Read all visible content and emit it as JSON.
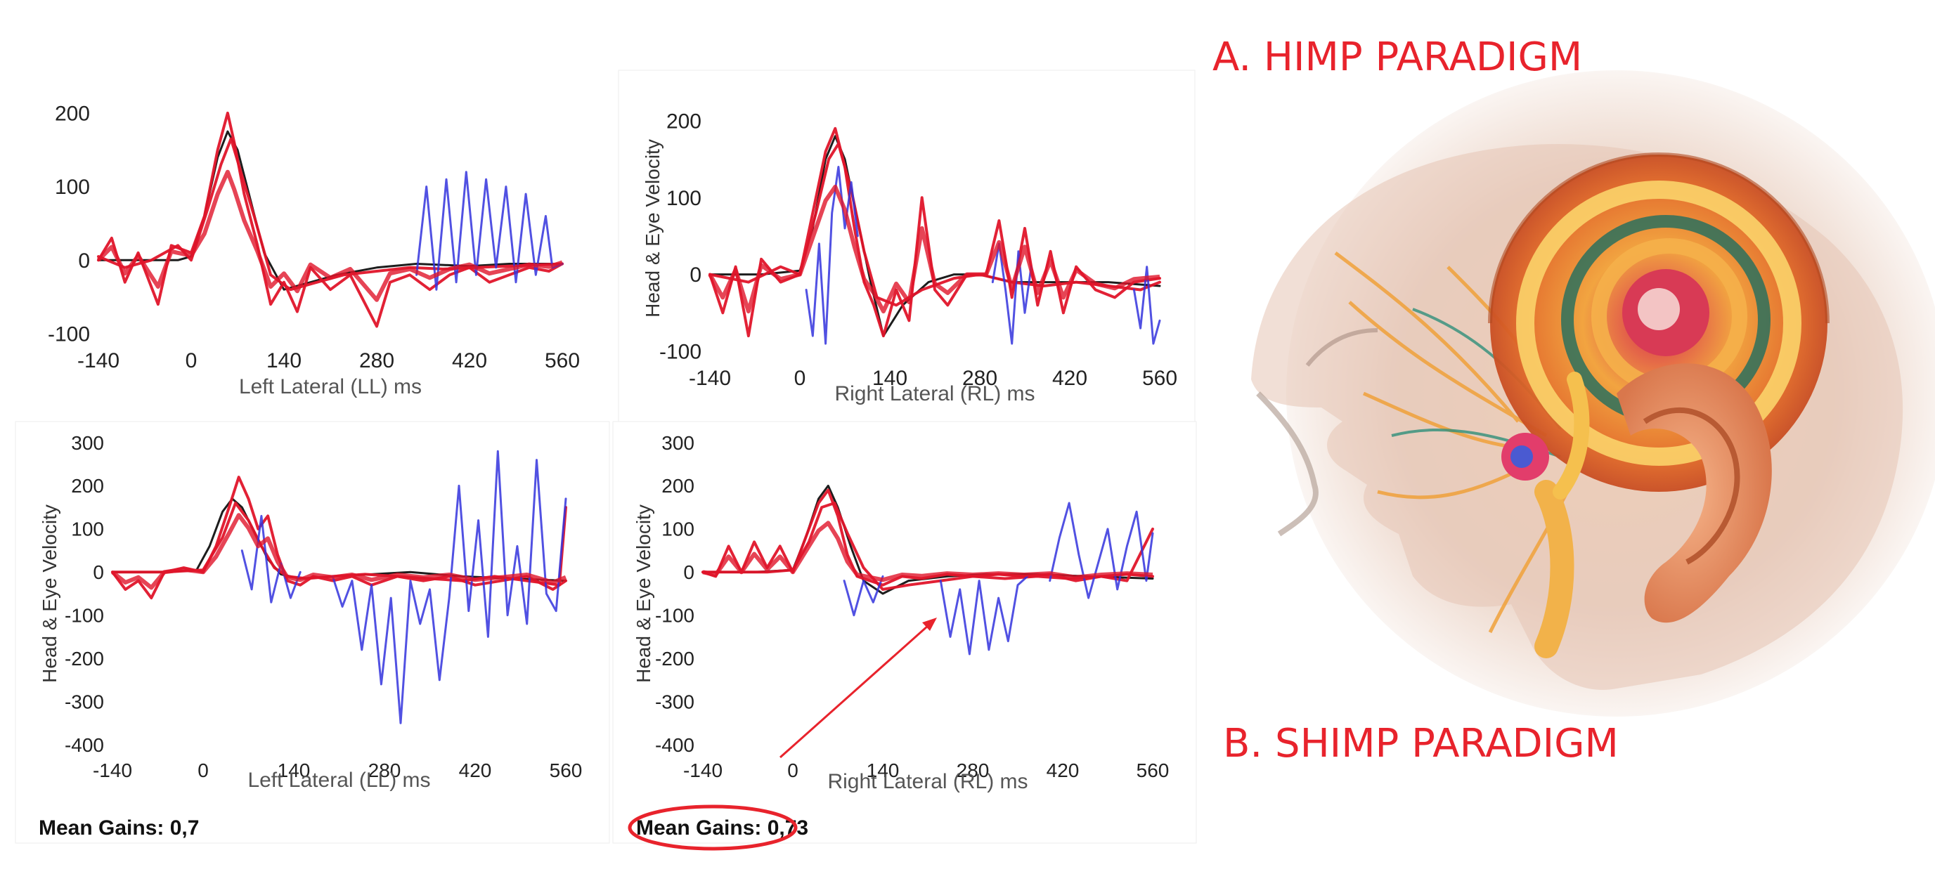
{
  "colors": {
    "trace_red": "#e0152a",
    "trace_blue": "#3333dd",
    "trace_black": "#111111",
    "label_red": "#e8232c",
    "axis_text": "#222222",
    "annotation_red": "#e8232c"
  },
  "labels": {
    "himp": "A. HIMP PARADIGM",
    "shimp": "B. SHIMP PARADIGM"
  },
  "illustration": {
    "icon": "inner-ear-cochlea-illustration"
  },
  "chart_data": [
    {
      "id": "himp_left",
      "type": "line",
      "xlabel": "Left Lateral (LL) ms",
      "ylabel": "",
      "xticks": [
        -140,
        0,
        140,
        280,
        420,
        560
      ],
      "yticks": [
        200,
        100,
        0,
        -100
      ],
      "xlim": [
        -140,
        560
      ],
      "ylim": [
        -100,
        220
      ],
      "mean_gain_label": "",
      "series": [
        {
          "color": "black",
          "x": [
            -140,
            -80,
            -20,
            0,
            20,
            40,
            55,
            70,
            90,
            110,
            140,
            180,
            220,
            280,
            340,
            420,
            480,
            560
          ],
          "y": [
            0,
            0,
            0,
            5,
            60,
            140,
            175,
            150,
            80,
            10,
            -40,
            -30,
            -20,
            -10,
            -5,
            -8,
            -5,
            -5
          ]
        },
        {
          "color": "red",
          "x": [
            -140,
            -120,
            -100,
            -80,
            -50,
            -30,
            0,
            20,
            40,
            55,
            65,
            80,
            100,
            120,
            140,
            160,
            180,
            210,
            240,
            280,
            300,
            330,
            360,
            390,
            420,
            450,
            480,
            510,
            540,
            560
          ],
          "y": [
            0,
            30,
            -30,
            10,
            -60,
            20,
            10,
            60,
            150,
            200,
            160,
            90,
            20,
            -60,
            -30,
            -70,
            -10,
            -40,
            -20,
            -90,
            -30,
            -20,
            -40,
            -20,
            -10,
            -30,
            -20,
            -10,
            -15,
            -5
          ]
        },
        {
          "color": "red",
          "x": [
            -140,
            -100,
            -60,
            -20,
            0,
            25,
            45,
            60,
            75,
            95,
            120,
            150,
            190,
            230,
            280,
            330,
            380,
            430,
            480,
            530,
            560
          ],
          "y": [
            5,
            -10,
            0,
            20,
            0,
            70,
            130,
            165,
            120,
            60,
            -20,
            -40,
            -30,
            -20,
            -15,
            -10,
            -12,
            -10,
            -8,
            -6,
            -5
          ]
        },
        {
          "color": "blue",
          "x": [
            340,
            355,
            370,
            385,
            400,
            415,
            430,
            445,
            460,
            475,
            490,
            505,
            520,
            535,
            545,
            560
          ],
          "y": [
            -20,
            100,
            -40,
            110,
            -30,
            120,
            -20,
            110,
            -10,
            100,
            -30,
            90,
            -20,
            60,
            -10,
            -5
          ]
        }
      ]
    },
    {
      "id": "himp_right",
      "type": "line",
      "xlabel": "Right Lateral (RL) ms",
      "ylabel": "Head & Eye Velocity",
      "xticks": [
        -140,
        0,
        140,
        280,
        420,
        560
      ],
      "yticks": [
        200,
        100,
        0,
        -100
      ],
      "xlim": [
        -140,
        560
      ],
      "ylim": [
        -100,
        220
      ],
      "mean_gain_label": "",
      "series": [
        {
          "color": "black",
          "x": [
            -140,
            -60,
            0,
            20,
            40,
            55,
            70,
            90,
            110,
            130,
            160,
            200,
            240,
            280,
            330,
            400,
            480,
            560
          ],
          "y": [
            0,
            0,
            5,
            60,
            150,
            180,
            150,
            70,
            -10,
            -80,
            -40,
            -10,
            0,
            0,
            -10,
            -10,
            -10,
            -15
          ]
        },
        {
          "color": "red",
          "x": [
            -140,
            -120,
            -100,
            -80,
            -60,
            -30,
            0,
            20,
            40,
            55,
            70,
            85,
            100,
            115,
            130,
            150,
            170,
            190,
            210,
            230,
            260,
            290,
            310,
            330,
            350,
            370,
            390,
            410,
            430,
            460,
            490,
            520,
            560
          ],
          "y": [
            0,
            -50,
            10,
            -80,
            20,
            -10,
            0,
            80,
            160,
            190,
            140,
            60,
            -10,
            -40,
            -80,
            -20,
            -60,
            100,
            -20,
            -40,
            0,
            0,
            70,
            -30,
            60,
            -40,
            30,
            -50,
            10,
            -20,
            -30,
            -10,
            -5
          ]
        },
        {
          "color": "red",
          "x": [
            -140,
            -80,
            -30,
            0,
            25,
            45,
            60,
            80,
            100,
            120,
            150,
            190,
            240,
            280,
            330,
            380,
            430,
            480,
            530,
            560
          ],
          "y": [
            0,
            -10,
            10,
            0,
            80,
            150,
            170,
            110,
            30,
            -30,
            -40,
            -20,
            -5,
            0,
            -10,
            -15,
            -10,
            -15,
            -20,
            -10
          ]
        },
        {
          "color": "blue",
          "x": [
            10,
            20,
            30,
            40,
            50,
            60,
            70,
            80,
            90
          ],
          "y": [
            -20,
            -80,
            40,
            -90,
            80,
            140,
            60,
            120,
            50
          ]
        },
        {
          "color": "blue",
          "x": [
            300,
            310,
            320,
            330,
            340,
            350,
            360
          ],
          "y": [
            -10,
            40,
            -20,
            -90,
            30,
            -50,
            10
          ]
        },
        {
          "color": "blue",
          "x": [
            520,
            530,
            540,
            550,
            560
          ],
          "y": [
            -20,
            -70,
            10,
            -90,
            -60
          ]
        }
      ]
    },
    {
      "id": "shimp_left",
      "type": "line",
      "xlabel": "Left Lateral (LL) ms",
      "ylabel": "Head & Eye Velocity",
      "xticks": [
        -140,
        0,
        140,
        280,
        420,
        560
      ],
      "yticks": [
        300,
        200,
        100,
        0,
        -100,
        -200,
        -300,
        -400
      ],
      "xlim": [
        -140,
        560
      ],
      "ylim": [
        -400,
        300
      ],
      "mean_gain_label": "Mean Gains: 0,7",
      "series": [
        {
          "color": "black",
          "x": [
            -140,
            -60,
            -10,
            10,
            30,
            45,
            60,
            80,
            100,
            120,
            150,
            200,
            260,
            320,
            400,
            480,
            560
          ],
          "y": [
            0,
            0,
            5,
            60,
            140,
            170,
            150,
            90,
            30,
            -5,
            -15,
            -10,
            -5,
            0,
            -10,
            -15,
            -20
          ]
        },
        {
          "color": "red",
          "x": [
            -140,
            -120,
            -100,
            -80,
            -60,
            -30,
            0,
            20,
            40,
            55,
            70,
            85,
            100,
            115,
            130,
            150,
            170,
            200,
            230,
            260,
            300,
            340,
            380,
            420,
            460,
            500,
            540,
            560
          ],
          "y": [
            0,
            -40,
            -20,
            -60,
            0,
            10,
            0,
            60,
            150,
            220,
            170,
            100,
            130,
            40,
            -20,
            -30,
            -10,
            -20,
            -10,
            -30,
            -10,
            -20,
            -10,
            -30,
            -20,
            -10,
            -40,
            -20
          ]
        },
        {
          "color": "red",
          "x": [
            -140,
            -60,
            0,
            30,
            50,
            70,
            90,
            110,
            130,
            160,
            200,
            250,
            300,
            350,
            400,
            450,
            500,
            550,
            560
          ],
          "y": [
            0,
            0,
            5,
            80,
            160,
            120,
            60,
            10,
            -10,
            -15,
            -10,
            -5,
            -10,
            -15,
            -20,
            -10,
            -20,
            -30,
            150
          ]
        },
        {
          "color": "blue",
          "x": [
            60,
            75,
            90,
            105,
            120,
            135,
            150
          ],
          "y": [
            50,
            -40,
            130,
            -70,
            20,
            -60,
            0
          ]
        },
        {
          "color": "blue",
          "x": [
            200,
            215,
            230,
            245,
            260,
            275,
            290,
            305,
            320,
            335,
            350,
            365,
            380,
            395,
            410,
            425,
            440,
            455,
            470,
            485,
            500,
            515,
            530,
            545,
            560
          ],
          "y": [
            -10,
            -80,
            -20,
            -180,
            -30,
            -260,
            -60,
            -350,
            -20,
            -120,
            -40,
            -250,
            -60,
            200,
            -90,
            120,
            -150,
            280,
            -100,
            60,
            -120,
            260,
            -50,
            -90,
            170
          ]
        }
      ]
    },
    {
      "id": "shimp_right",
      "type": "line",
      "xlabel": "Right Lateral (RL) ms",
      "ylabel": "Head & Eye Velocity",
      "xticks": [
        -140,
        0,
        140,
        280,
        420,
        560
      ],
      "yticks": [
        300,
        200,
        100,
        0,
        -100,
        -200,
        -300,
        -400
      ],
      "xlim": [
        -140,
        560
      ],
      "ylim": [
        -400,
        300
      ],
      "mean_gain_label": "Mean Gains: 0,73",
      "series": [
        {
          "color": "black",
          "x": [
            -140,
            -60,
            0,
            20,
            40,
            55,
            70,
            90,
            110,
            140,
            180,
            240,
            300,
            380,
            460,
            560
          ],
          "y": [
            0,
            0,
            5,
            80,
            170,
            200,
            150,
            60,
            -20,
            -50,
            -20,
            -10,
            -5,
            -5,
            -10,
            -15
          ]
        },
        {
          "color": "red",
          "x": [
            -140,
            -120,
            -100,
            -80,
            -60,
            -40,
            -20,
            0,
            20,
            40,
            55,
            70,
            85,
            100,
            120,
            140,
            170,
            200,
            240,
            280,
            320,
            360,
            400,
            440,
            480,
            520,
            560
          ],
          "y": [
            0,
            -10,
            60,
            0,
            70,
            10,
            60,
            0,
            80,
            160,
            190,
            130,
            40,
            -10,
            -20,
            -30,
            -10,
            -15,
            -5,
            -10,
            -5,
            -10,
            -5,
            -20,
            -10,
            -5,
            -10
          ]
        },
        {
          "color": "red",
          "x": [
            -140,
            -40,
            0,
            25,
            45,
            65,
            85,
            110,
            140,
            180,
            230,
            280,
            330,
            380,
            430,
            480,
            520,
            560
          ],
          "y": [
            0,
            0,
            5,
            70,
            150,
            160,
            90,
            10,
            -40,
            -30,
            -20,
            -10,
            -15,
            -10,
            -15,
            -10,
            -20,
            100
          ]
        },
        {
          "color": "blue",
          "x": [
            80,
            95,
            110,
            125,
            140
          ],
          "y": [
            -20,
            -100,
            -20,
            -70,
            -10
          ]
        },
        {
          "color": "blue",
          "x": [
            230,
            245,
            260,
            275,
            290,
            305,
            320,
            335,
            350,
            365
          ],
          "y": [
            -20,
            -150,
            -40,
            -190,
            -20,
            -180,
            -60,
            -160,
            -30,
            -10
          ]
        },
        {
          "color": "blue",
          "x": [
            400,
            415,
            430,
            445,
            460,
            475,
            490,
            505,
            520,
            535,
            550,
            560
          ],
          "y": [
            -20,
            80,
            160,
            40,
            -60,
            20,
            100,
            -40,
            60,
            140,
            -20,
            90
          ]
        }
      ]
    }
  ]
}
